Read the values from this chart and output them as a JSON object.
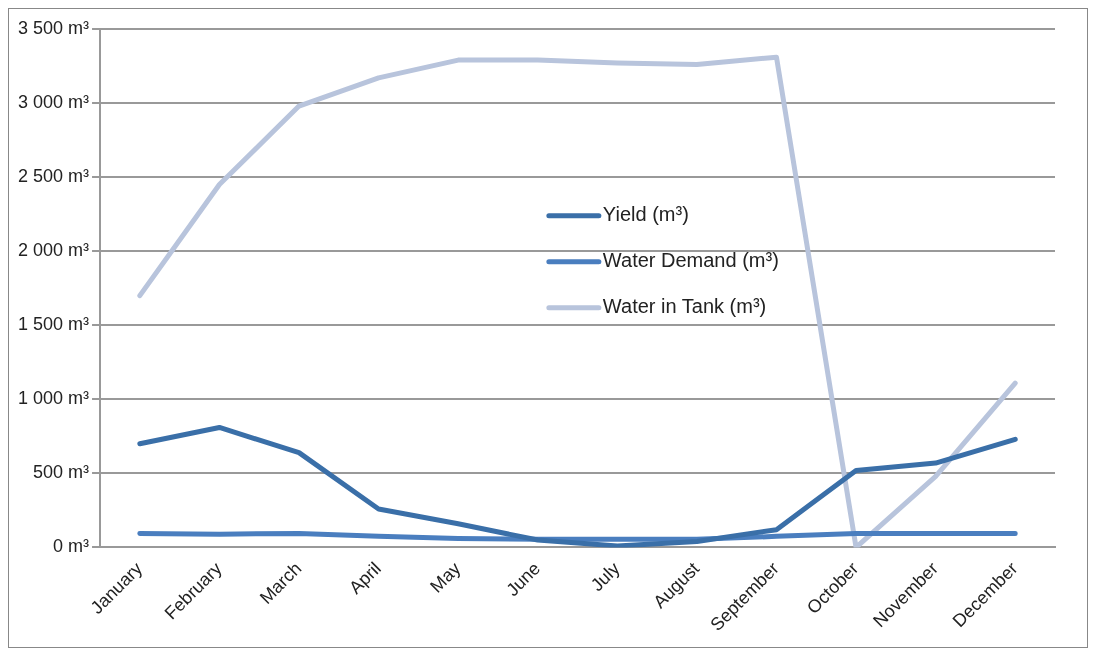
{
  "chart_data": {
    "type": "line",
    "categories": [
      "January",
      "February",
      "March",
      "April",
      "May",
      "June",
      "July",
      "August",
      "September",
      "October",
      "November",
      "December"
    ],
    "series": [
      {
        "name": "Yield (m³)",
        "color": "#3a6fa8",
        "values": [
          700,
          810,
          640,
          260,
          160,
          50,
          10,
          40,
          120,
          520,
          570,
          730
        ]
      },
      {
        "name": "Water Demand (m³)",
        "color": "#4a7ebf",
        "values": [
          95,
          90,
          95,
          75,
          60,
          55,
          55,
          55,
          75,
          95,
          95,
          95
        ]
      },
      {
        "name": "Water in Tank (m³)",
        "color": "#b8c4dc",
        "values": [
          1700,
          2450,
          2980,
          3170,
          3290,
          3290,
          3270,
          3260,
          3310,
          0,
          480,
          1110
        ]
      }
    ],
    "ylim": [
      0,
      3500
    ],
    "yticks": [
      {
        "value": 0,
        "label": "0 m³"
      },
      {
        "value": 500,
        "label": "500 m³"
      },
      {
        "value": 1000,
        "label": "1 000 m³"
      },
      {
        "value": 1500,
        "label": "1 500 m³"
      },
      {
        "value": 2000,
        "label": "2 000 m³"
      },
      {
        "value": 2500,
        "label": "2 500 m³"
      },
      {
        "value": 3000,
        "label": "3 000 m³"
      },
      {
        "value": 3500,
        "label": "3 500 m³"
      }
    ],
    "grid": "y",
    "legend": "top right",
    "marker": "none",
    "line_style": "solid"
  }
}
